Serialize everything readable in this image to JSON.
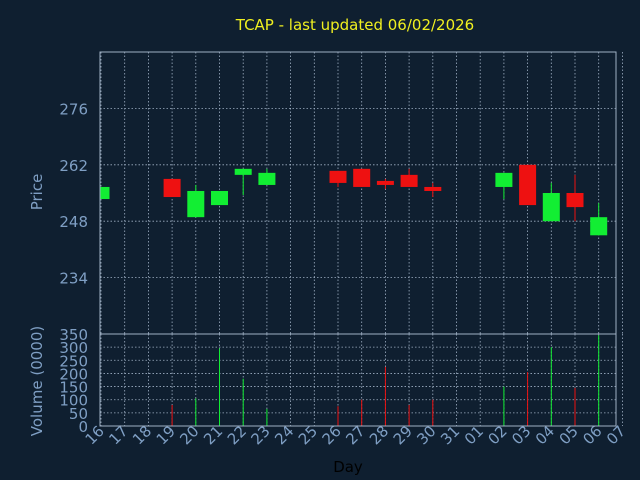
{
  "chart_data": [
    {
      "type": "candlestick",
      "title": "TCAP - last updated 06/02/2026",
      "xlabel": "Day",
      "ylabel": "Price",
      "ylim": [
        220,
        290
      ],
      "y_ticks": [
        234,
        248,
        262,
        276
      ],
      "x_ticks": [
        "16",
        "17",
        "18",
        "19",
        "20",
        "21",
        "22",
        "23",
        "24",
        "25",
        "26",
        "27",
        "28",
        "29",
        "30",
        "31",
        "01",
        "02",
        "03",
        "04",
        "05",
        "06",
        "07"
      ],
      "grid": true,
      "candles": [
        {
          "day": "16",
          "open": 253.5,
          "close": 256.5,
          "high": 256.5,
          "low": 253.5,
          "direction": "up"
        },
        {
          "day": "19",
          "open": 258.5,
          "close": 254.0,
          "high": 258.5,
          "low": 254.0,
          "direction": "down"
        },
        {
          "day": "20",
          "open": 249.0,
          "close": 255.5,
          "high": 257.0,
          "low": 249.0,
          "direction": "up"
        },
        {
          "day": "21",
          "open": 252.0,
          "close": 255.5,
          "high": 255.5,
          "low": 252.0,
          "direction": "up"
        },
        {
          "day": "22",
          "open": 259.5,
          "close": 261.0,
          "high": 261.0,
          "low": 254.5,
          "direction": "up"
        },
        {
          "day": "23",
          "open": 257.0,
          "close": 260.0,
          "high": 261.0,
          "low": 257.0,
          "direction": "up"
        },
        {
          "day": "26",
          "open": 260.5,
          "close": 257.5,
          "high": 260.5,
          "low": 256.5,
          "direction": "down"
        },
        {
          "day": "27",
          "open": 261.0,
          "close": 256.5,
          "high": 261.0,
          "low": 256.5,
          "direction": "down"
        },
        {
          "day": "28",
          "open": 258.0,
          "close": 257.0,
          "high": 258.5,
          "low": 256.0,
          "direction": "down"
        },
        {
          "day": "29",
          "open": 259.5,
          "close": 256.5,
          "high": 261.0,
          "low": 256.5,
          "direction": "down"
        },
        {
          "day": "30",
          "open": 256.5,
          "close": 255.5,
          "high": 257.5,
          "low": 254.0,
          "direction": "down"
        },
        {
          "day": "02",
          "open": 256.5,
          "close": 260.0,
          "high": 260.0,
          "low": 253.5,
          "direction": "up"
        },
        {
          "day": "03",
          "open": 262.0,
          "close": 252.0,
          "high": 262.0,
          "low": 252.0,
          "direction": "down"
        },
        {
          "day": "04",
          "open": 248.0,
          "close": 255.0,
          "high": 257.5,
          "low": 248.0,
          "direction": "up"
        },
        {
          "day": "05",
          "open": 255.0,
          "close": 251.5,
          "high": 259.5,
          "low": 248.0,
          "direction": "down"
        },
        {
          "day": "06",
          "open": 244.5,
          "close": 249.0,
          "high": 252.5,
          "low": 244.5,
          "direction": "up"
        }
      ]
    },
    {
      "type": "bar",
      "xlabel": "Day",
      "ylabel": "Volume (0000)",
      "ylim": [
        0,
        350
      ],
      "y_ticks": [
        0,
        50,
        100,
        150,
        200,
        250,
        300,
        350
      ],
      "grid": true,
      "bars": [
        {
          "day": "19",
          "value": 80,
          "direction": "down"
        },
        {
          "day": "20",
          "value": 105,
          "direction": "up"
        },
        {
          "day": "21",
          "value": 295,
          "direction": "up"
        },
        {
          "day": "22",
          "value": 180,
          "direction": "up"
        },
        {
          "day": "23",
          "value": 65,
          "direction": "up"
        },
        {
          "day": "26",
          "value": 75,
          "direction": "down"
        },
        {
          "day": "27",
          "value": 100,
          "direction": "down"
        },
        {
          "day": "28",
          "value": 225,
          "direction": "down"
        },
        {
          "day": "29",
          "value": 80,
          "direction": "down"
        },
        {
          "day": "30",
          "value": 100,
          "direction": "down"
        },
        {
          "day": "02",
          "value": 150,
          "direction": "up"
        },
        {
          "day": "03",
          "value": 205,
          "direction": "down"
        },
        {
          "day": "04",
          "value": 300,
          "direction": "up"
        },
        {
          "day": "05",
          "value": 145,
          "direction": "down"
        },
        {
          "day": "06",
          "value": 345,
          "direction": "up"
        }
      ]
    }
  ],
  "colors": {
    "background": "#0f1f30",
    "title": "#f0f020",
    "axis_text": "#7f9fc4",
    "grid": "#9fb0c4",
    "frame": "#9fb0c4",
    "up": "#12ee33",
    "down": "#ee1111",
    "xlabel": "#000000"
  }
}
